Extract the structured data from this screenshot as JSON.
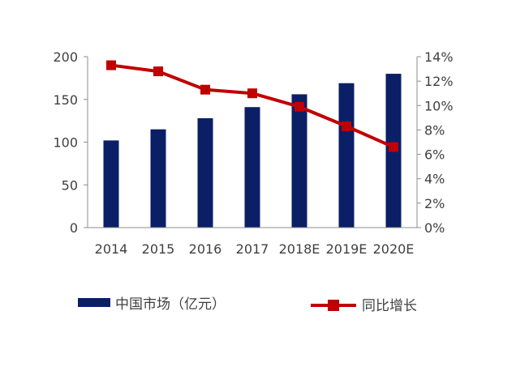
{
  "chart_data": {
    "type": "bar",
    "categories": [
      "2014",
      "2015",
      "2016",
      "2017",
      "2018E",
      "2019E",
      "2020E"
    ],
    "series": [
      {
        "name": "中国市场（亿元）",
        "type": "bar",
        "axis": "left",
        "color": "#0b1f66",
        "values": [
          102,
          115,
          128,
          141,
          156,
          169,
          180
        ]
      },
      {
        "name": "同比增长",
        "type": "line",
        "axis": "right",
        "color": "#c00000",
        "values": [
          13.3,
          12.8,
          11.3,
          11.0,
          9.9,
          8.3,
          6.6
        ]
      }
    ],
    "left_axis": {
      "ylim": [
        0,
        200
      ],
      "ticks": [
        0,
        50,
        100,
        150,
        200
      ],
      "tick_labels": [
        "0",
        "50",
        "100",
        "150",
        "200"
      ]
    },
    "right_axis": {
      "ylim": [
        0,
        14
      ],
      "ticks": [
        0,
        2,
        4,
        6,
        8,
        10,
        12,
        14
      ],
      "tick_labels": [
        "0%",
        "2%",
        "4%",
        "6%",
        "8%",
        "10%",
        "12%",
        "14%"
      ]
    },
    "grid": false,
    "legend": "bottom"
  }
}
